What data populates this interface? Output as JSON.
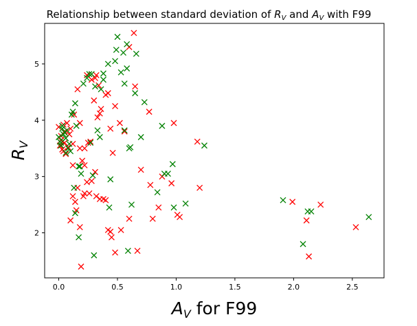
{
  "chart_data": {
    "type": "scatter",
    "title_main": "Relationship between standard deviation of ",
    "title_sym1": "R",
    "title_sub1": "V",
    "title_mid": " and ",
    "title_sym2": "A",
    "title_sub2": "V",
    "title_end": " with F99",
    "xlabel_sym": "A",
    "xlabel_sub": "V",
    "xlabel_rest": " for F99",
    "ylabel_sym": "R",
    "ylabel_sub": "V",
    "xlim": [
      -0.12,
      2.77
    ],
    "ylim": [
      1.2,
      5.72
    ],
    "xticks": [
      0.0,
      0.5,
      1.0,
      1.5,
      2.0,
      2.5
    ],
    "xtick_labels": [
      "0.0",
      "0.5",
      "1.0",
      "1.5",
      "2.0",
      "2.5"
    ],
    "yticks": [
      2,
      3,
      4,
      5
    ],
    "ytick_labels": [
      "2",
      "3",
      "4",
      "5"
    ],
    "marker": "x",
    "grid": false,
    "series": [
      {
        "color": "#ff0000",
        "points": [
          [
            0.0,
            3.88
          ],
          [
            0.01,
            3.55
          ],
          [
            0.02,
            3.65
          ],
          [
            0.03,
            3.48
          ],
          [
            0.04,
            3.92
          ],
          [
            0.05,
            3.6
          ],
          [
            0.06,
            3.4
          ],
          [
            0.07,
            3.95
          ],
          [
            0.08,
            3.52
          ],
          [
            0.09,
            3.75
          ],
          [
            0.1,
            3.85
          ],
          [
            0.12,
            3.58
          ],
          [
            0.02,
            3.72
          ],
          [
            0.05,
            3.8
          ],
          [
            0.04,
            3.45
          ],
          [
            0.03,
            3.62
          ],
          [
            0.13,
            4.1
          ],
          [
            0.16,
            4.55
          ],
          [
            0.18,
            3.95
          ],
          [
            0.22,
            3.5
          ],
          [
            0.2,
            3.28
          ],
          [
            0.25,
            3.6
          ],
          [
            0.24,
            4.8
          ],
          [
            0.28,
            4.72
          ],
          [
            0.3,
            4.35
          ],
          [
            0.32,
            4.8
          ],
          [
            0.34,
            4.62
          ],
          [
            0.36,
            4.2
          ],
          [
            0.4,
            4.45
          ],
          [
            0.42,
            4.48
          ],
          [
            0.44,
            3.85
          ],
          [
            0.46,
            3.42
          ],
          [
            0.48,
            4.25
          ],
          [
            0.52,
            3.95
          ],
          [
            0.56,
            3.8
          ],
          [
            0.6,
            5.3
          ],
          [
            0.64,
            5.55
          ],
          [
            0.65,
            4.6
          ],
          [
            0.7,
            3.12
          ],
          [
            0.77,
            4.15
          ],
          [
            0.78,
            2.85
          ],
          [
            0.8,
            2.25
          ],
          [
            0.85,
            2.45
          ],
          [
            0.88,
            3.0
          ],
          [
            0.96,
            2.88
          ],
          [
            0.98,
            3.95
          ],
          [
            1.01,
            2.32
          ],
          [
            1.03,
            2.28
          ],
          [
            1.18,
            3.62
          ],
          [
            1.2,
            2.8
          ],
          [
            0.1,
            2.22
          ],
          [
            0.12,
            2.65
          ],
          [
            0.14,
            2.55
          ],
          [
            0.15,
            2.4
          ],
          [
            0.18,
            2.1
          ],
          [
            0.19,
            1.4
          ],
          [
            0.22,
            2.7
          ],
          [
            0.24,
            2.9
          ],
          [
            0.26,
            2.7
          ],
          [
            0.28,
            2.92
          ],
          [
            0.31,
            3.08
          ],
          [
            0.32,
            2.65
          ],
          [
            0.35,
            2.6
          ],
          [
            0.38,
            2.6
          ],
          [
            0.4,
            2.58
          ],
          [
            0.42,
            2.05
          ],
          [
            0.45,
            1.92
          ],
          [
            0.48,
            1.65
          ],
          [
            0.53,
            2.05
          ],
          [
            0.6,
            2.25
          ],
          [
            0.67,
            1.68
          ],
          [
            0.18,
            3.5
          ],
          [
            0.12,
            3.2
          ],
          [
            0.16,
            2.8
          ],
          [
            0.22,
            3.2
          ],
          [
            0.27,
            3.62
          ],
          [
            0.31,
            4.75
          ],
          [
            0.33,
            4.05
          ],
          [
            0.35,
            4.12
          ],
          [
            1.99,
            2.55
          ],
          [
            2.11,
            2.22
          ],
          [
            2.13,
            1.58
          ],
          [
            2.23,
            2.5
          ],
          [
            2.53,
            2.1
          ],
          [
            0.21,
            2.65
          ],
          [
            0.44,
            2.02
          ]
        ]
      },
      {
        "color": "#008000",
        "points": [
          [
            0.0,
            3.7
          ],
          [
            0.01,
            3.62
          ],
          [
            0.02,
            3.55
          ],
          [
            0.03,
            3.9
          ],
          [
            0.05,
            3.78
          ],
          [
            0.06,
            3.68
          ],
          [
            0.07,
            3.82
          ],
          [
            0.08,
            3.5
          ],
          [
            0.1,
            3.45
          ],
          [
            0.11,
            4.1
          ],
          [
            0.12,
            4.15
          ],
          [
            0.14,
            4.3
          ],
          [
            0.15,
            3.9
          ],
          [
            0.02,
            3.6
          ],
          [
            0.04,
            3.75
          ],
          [
            0.06,
            3.42
          ],
          [
            0.09,
            3.58
          ],
          [
            0.03,
            3.85
          ],
          [
            0.13,
            2.8
          ],
          [
            0.14,
            2.35
          ],
          [
            0.17,
            1.92
          ],
          [
            0.18,
            3.18
          ],
          [
            0.19,
            3.05
          ],
          [
            0.21,
            4.65
          ],
          [
            0.24,
            4.75
          ],
          [
            0.26,
            4.82
          ],
          [
            0.27,
            3.6
          ],
          [
            0.28,
            4.82
          ],
          [
            0.29,
            3.02
          ],
          [
            0.3,
            1.6
          ],
          [
            0.31,
            4.6
          ],
          [
            0.33,
            3.82
          ],
          [
            0.35,
            3.7
          ],
          [
            0.36,
            4.55
          ],
          [
            0.38,
            4.72
          ],
          [
            0.38,
            4.83
          ],
          [
            0.42,
            5.0
          ],
          [
            0.44,
            2.95
          ],
          [
            0.48,
            5.05
          ],
          [
            0.49,
            5.25
          ],
          [
            0.5,
            5.48
          ],
          [
            0.53,
            4.85
          ],
          [
            0.55,
            5.2
          ],
          [
            0.56,
            3.82
          ],
          [
            0.56,
            4.65
          ],
          [
            0.58,
            5.35
          ],
          [
            0.58,
            4.92
          ],
          [
            0.6,
            3.5
          ],
          [
            0.61,
            3.52
          ],
          [
            0.62,
            2.5
          ],
          [
            0.65,
            4.48
          ],
          [
            0.66,
            5.18
          ],
          [
            0.7,
            3.7
          ],
          [
            0.73,
            4.32
          ],
          [
            0.84,
            2.72
          ],
          [
            0.88,
            3.9
          ],
          [
            0.9,
            3.05
          ],
          [
            0.93,
            3.05
          ],
          [
            0.97,
            3.22
          ],
          [
            0.98,
            2.45
          ],
          [
            1.08,
            2.52
          ],
          [
            1.24,
            3.55
          ],
          [
            1.91,
            2.58
          ],
          [
            2.08,
            1.8
          ],
          [
            2.12,
            2.38
          ],
          [
            2.15,
            2.38
          ],
          [
            2.64,
            2.28
          ],
          [
            0.43,
            2.45
          ],
          [
            0.59,
            1.68
          ],
          [
            0.17,
            3.18
          ]
        ]
      }
    ]
  }
}
